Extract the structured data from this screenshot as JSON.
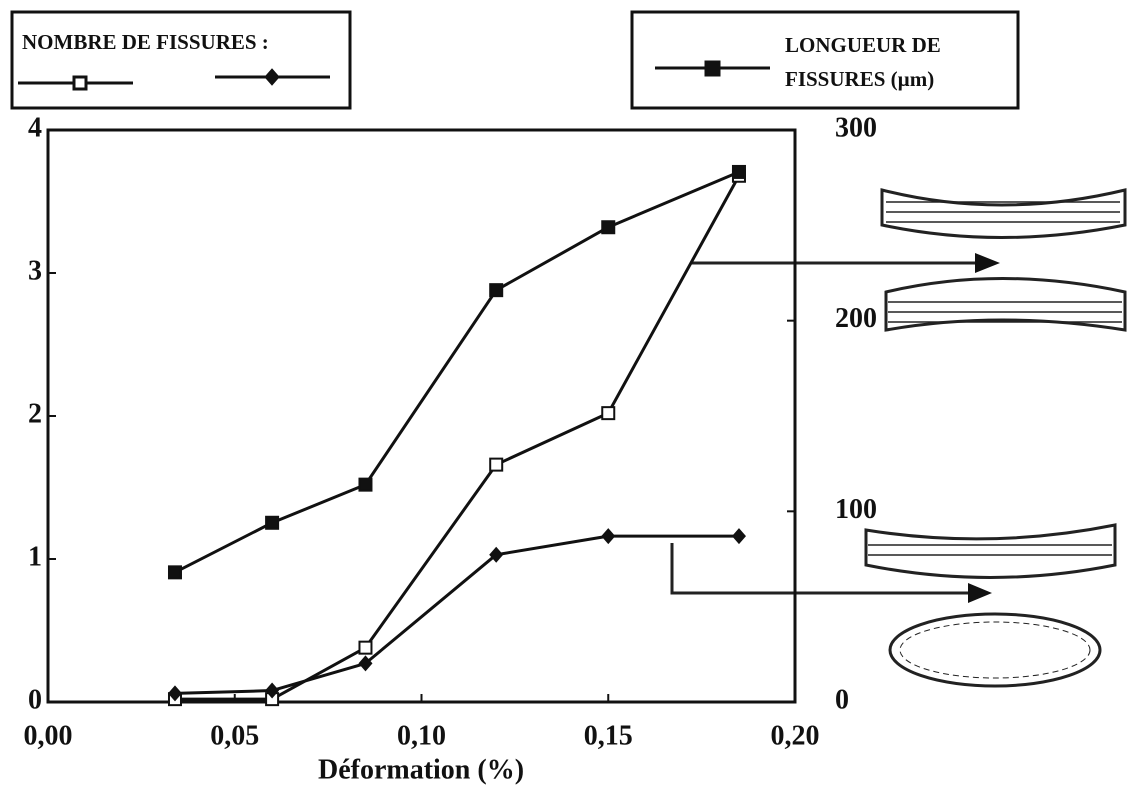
{
  "chart_data": {
    "type": "line",
    "x_label": "Déformation (%)",
    "legend_title": "NOMBRE DE FISSURES :",
    "x": [
      0.034,
      0.06,
      0.085,
      0.12,
      0.15,
      0.185
    ],
    "series": [
      {
        "color": "#111111",
        "marker": "open-square",
        "values": [
          0.02,
          0.02,
          0.38,
          1.66,
          2.02,
          3.68
        ]
      },
      {
        "color": "#111111",
        "marker": "diamond",
        "values": [
          0.06,
          0.08,
          0.27,
          1.03,
          1.16,
          1.16
        ]
      },
      {
        "name": "LONGUEUR DE FISSURES (µm)",
        "color": "#111111",
        "marker": "filled-square",
        "axis": "y2",
        "values": [
          68,
          94,
          114,
          216,
          249,
          278
        ]
      }
    ],
    "xlim": [
      0,
      0.2
    ],
    "xticks": [
      {
        "value": 0,
        "label": "0,00"
      },
      {
        "value": 0.05,
        "label": "0,05"
      },
      {
        "value": 0.1,
        "label": "0,10"
      },
      {
        "value": 0.15,
        "label": "0,15"
      },
      {
        "value": 0.2,
        "label": "0,20"
      }
    ],
    "ylim": [
      0,
      4
    ],
    "yticks": [
      0,
      1,
      2,
      3,
      4
    ],
    "y2lim": [
      0,
      300
    ],
    "y2ticks": [
      0,
      100,
      200,
      300
    ]
  }
}
